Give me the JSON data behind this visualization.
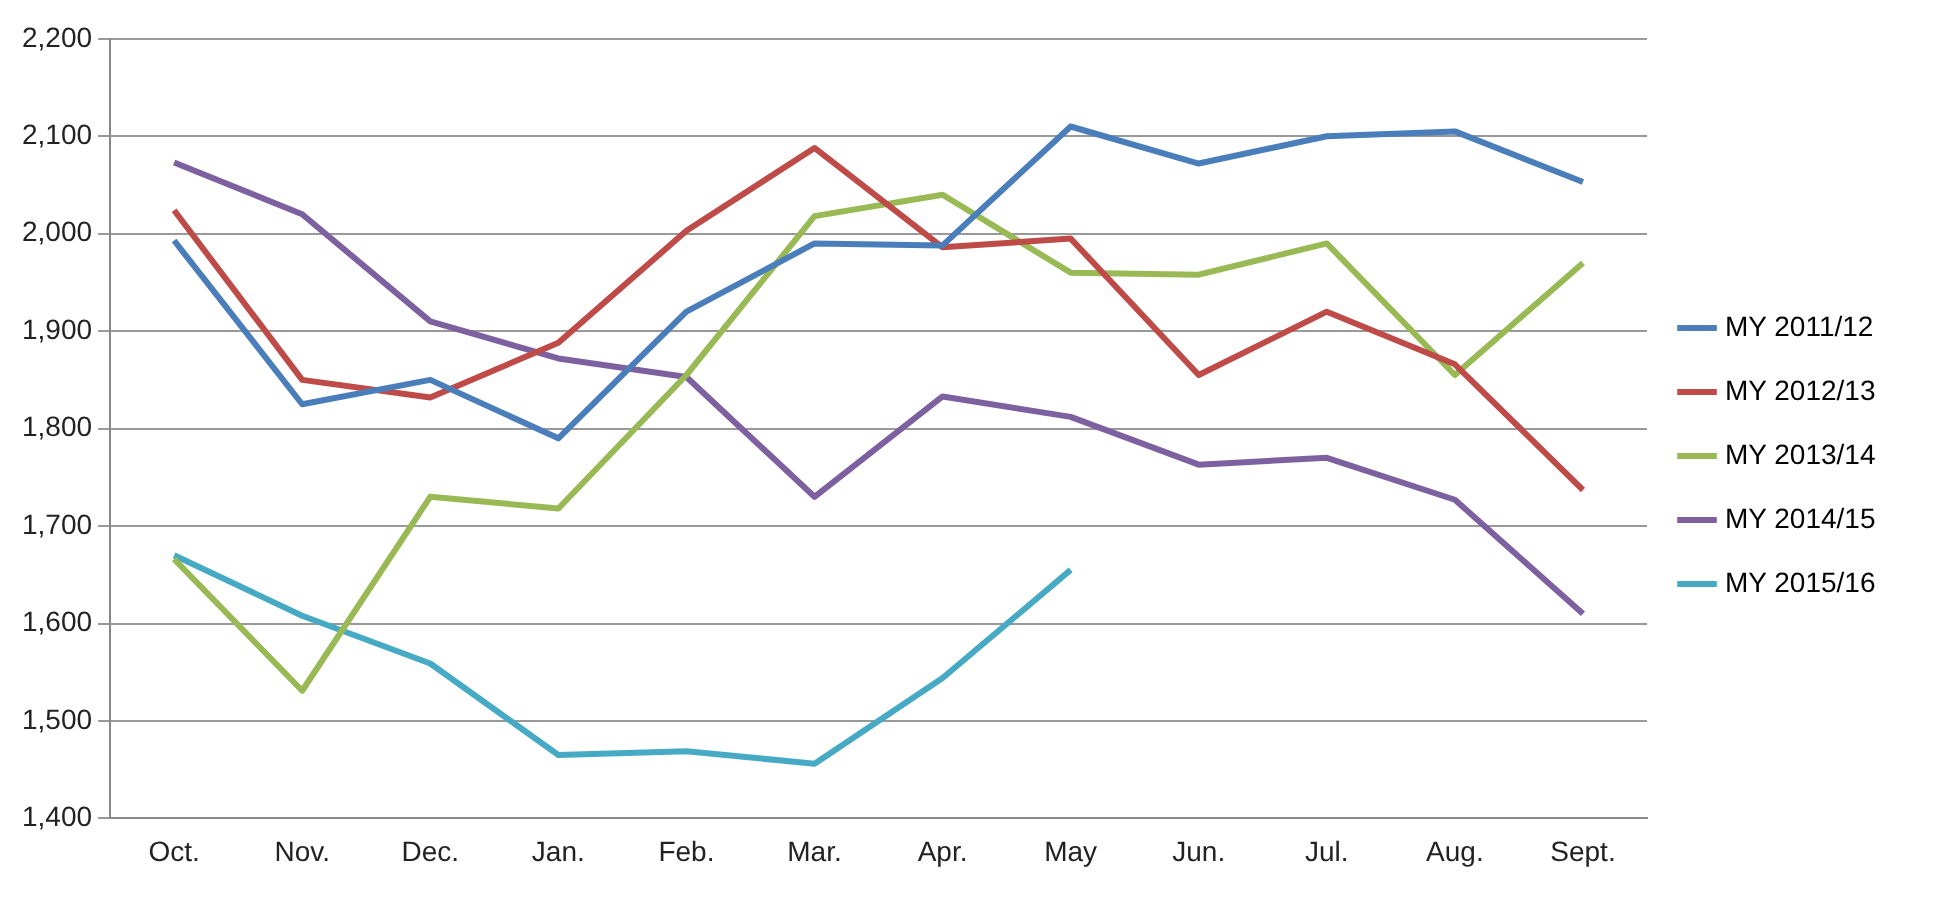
{
  "chart_data": {
    "type": "line",
    "categories": [
      "Oct.",
      "Nov.",
      "Dec.",
      "Jan.",
      "Feb.",
      "Mar.",
      "Apr.",
      "May",
      "Jun.",
      "Jul.",
      "Aug.",
      "Sept."
    ],
    "ylim": [
      1400,
      2200
    ],
    "yticks": [
      {
        "value": 1400,
        "label": "1,400"
      },
      {
        "value": 1500,
        "label": "1,500"
      },
      {
        "value": 1600,
        "label": "1,600"
      },
      {
        "value": 1700,
        "label": "1,700"
      },
      {
        "value": 1800,
        "label": "1,800"
      },
      {
        "value": 1900,
        "label": "1,900"
      },
      {
        "value": 2000,
        "label": "2,000"
      },
      {
        "value": 2100,
        "label": "2,100"
      },
      {
        "value": 2200,
        "label": "2,200"
      }
    ],
    "grid": "y",
    "legend": "right",
    "marker": "none",
    "line_style": "solid",
    "series": [
      {
        "name": "MY 2011/12",
        "color": "#4a7ebb",
        "values": [
          1993,
          1825,
          1850,
          1790,
          1920,
          1990,
          1988,
          2110,
          2072,
          2100,
          2105,
          2053
        ]
      },
      {
        "name": "MY 2012/13",
        "color": "#be4b48",
        "values": [
          2024,
          1850,
          1832,
          1888,
          2003,
          2088,
          1986,
          1995,
          1855,
          1920,
          1866,
          1737
        ]
      },
      {
        "name": "MY 2013/14",
        "color": "#98b954",
        "values": [
          1666,
          1531,
          1730,
          1718,
          1855,
          2018,
          2040,
          1960,
          1958,
          1990,
          1855,
          1970
        ]
      },
      {
        "name": "MY 2014/15",
        "color": "#7d60a0",
        "values": [
          2073,
          2020,
          1910,
          1872,
          1853,
          1730,
          1833,
          1812,
          1763,
          1770,
          1727,
          1610
        ]
      },
      {
        "name": "MY 2015/16",
        "color": "#46aac5",
        "values": [
          1670,
          1608,
          1559,
          1465,
          1469,
          1456,
          1544,
          1655,
          null,
          null,
          null,
          null
        ]
      }
    ]
  }
}
